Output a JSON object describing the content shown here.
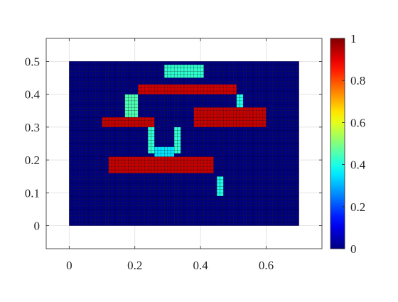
{
  "chart_data": {
    "type": "heatmap",
    "title": "",
    "xlabel": "",
    "ylabel": "",
    "xlim": [
      -0.07,
      0.77
    ],
    "ylim": [
      -0.07,
      0.57
    ],
    "x_ticks": [
      {
        "value": 0,
        "label": "0"
      },
      {
        "value": 0.2,
        "label": "0.2"
      },
      {
        "value": 0.4,
        "label": "0.4"
      },
      {
        "value": 0.6,
        "label": "0.6"
      }
    ],
    "y_ticks": [
      {
        "value": 0,
        "label": "0"
      },
      {
        "value": 0.1,
        "label": "0.1"
      },
      {
        "value": 0.2,
        "label": "0.2"
      },
      {
        "value": 0.3,
        "label": "0.3"
      },
      {
        "value": 0.4,
        "label": "0.4"
      },
      {
        "value": 0.5,
        "label": "0.5"
      }
    ],
    "grid": true,
    "colormap": "jet",
    "colorbar": {
      "range": [
        0,
        1
      ],
      "ticks": [
        {
          "value": 0,
          "label": "0"
        },
        {
          "value": 0.2,
          "label": "0.2"
        },
        {
          "value": 0.4,
          "label": "0.4"
        },
        {
          "value": 0.6,
          "label": "0.6"
        },
        {
          "value": 0.8,
          "label": "0.8"
        },
        {
          "value": 1,
          "label": "1"
        }
      ]
    },
    "domain": {
      "x": [
        0,
        0.7
      ],
      "y": [
        0,
        0.5
      ]
    },
    "cell_size": 0.01,
    "background_density": 0,
    "regions": [
      {
        "part": "top-cap",
        "x": [
          0.29,
          0.41
        ],
        "y": [
          0.45,
          0.49
        ],
        "density": 0.42
      },
      {
        "part": "top-flange",
        "x": [
          0.21,
          0.51
        ],
        "y": [
          0.4,
          0.43
        ],
        "density": 0.92
      },
      {
        "part": "left-strut-upper",
        "x": [
          0.17,
          0.21
        ],
        "y": [
          0.33,
          0.4
        ],
        "density": 0.45
      },
      {
        "part": "right-strut-upper",
        "x": [
          0.51,
          0.53
        ],
        "y": [
          0.36,
          0.4
        ],
        "density": 0.4
      },
      {
        "part": "left-arm",
        "x": [
          0.1,
          0.26
        ],
        "y": [
          0.3,
          0.33
        ],
        "density": 0.93
      },
      {
        "part": "right-arm",
        "x": [
          0.38,
          0.6
        ],
        "y": [
          0.3,
          0.36
        ],
        "density": 0.93
      },
      {
        "part": "left-stem",
        "x": [
          0.24,
          0.26
        ],
        "y": [
          0.22,
          0.3
        ],
        "density": 0.42
      },
      {
        "part": "right-stem",
        "x": [
          0.32,
          0.34
        ],
        "y": [
          0.22,
          0.3
        ],
        "density": 0.42
      },
      {
        "part": "neck",
        "x": [
          0.26,
          0.32
        ],
        "y": [
          0.21,
          0.24
        ],
        "density": 0.35
      },
      {
        "part": "bottom-flange",
        "x": [
          0.12,
          0.44
        ],
        "y": [
          0.16,
          0.21
        ],
        "density": 0.93
      },
      {
        "part": "tail",
        "x": [
          0.45,
          0.47
        ],
        "y": [
          0.09,
          0.15
        ],
        "density": 0.4
      }
    ]
  }
}
